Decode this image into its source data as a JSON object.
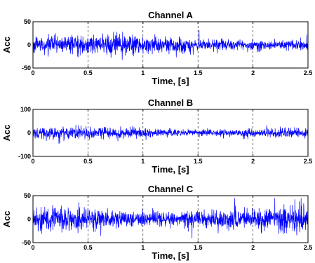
{
  "figure": {
    "line_color": "#0000ff"
  },
  "chart_data": [
    {
      "type": "line",
      "title": "Channel A",
      "xlabel": "Time, [s]",
      "ylabel": "Acc",
      "xlim": [
        0,
        2.5
      ],
      "ylim": [
        -50,
        50
      ],
      "xticks": [
        "0",
        "0.5",
        "1",
        "1.5",
        "2",
        "2.5"
      ],
      "yticks": [
        "50",
        "0",
        "-50"
      ],
      "grid": "vertical-dashed",
      "signal": {
        "duration_s": 2.5,
        "rms": 9,
        "peak_min": -45,
        "peak_max": 35
      }
    },
    {
      "type": "line",
      "title": "Channel B",
      "xlabel": "Time, [s]",
      "ylabel": "Acc",
      "xlim": [
        0,
        2.5
      ],
      "ylim": [
        -100,
        100
      ],
      "xticks": [
        "0",
        "0.5",
        "1",
        "1.5",
        "2",
        "2.5"
      ],
      "yticks": [
        "100",
        "0",
        "-100"
      ],
      "grid": "vertical-dashed",
      "signal": {
        "duration_s": 2.5,
        "rms": 12,
        "peak_min": -55,
        "peak_max": 50
      }
    },
    {
      "type": "line",
      "title": "Channel C",
      "xlabel": "Time, [s]",
      "ylabel": "Acc",
      "xlim": [
        0,
        2.5
      ],
      "ylim": [
        -50,
        50
      ],
      "xticks": [
        "0",
        "0.5",
        "1",
        "1.5",
        "2",
        "2.5"
      ],
      "yticks": [
        "50",
        "0",
        "-50"
      ],
      "grid": "vertical-dashed",
      "signal": {
        "duration_s": 2.5,
        "rms": 13,
        "peak_min": -45,
        "peak_max": 45
      }
    }
  ]
}
